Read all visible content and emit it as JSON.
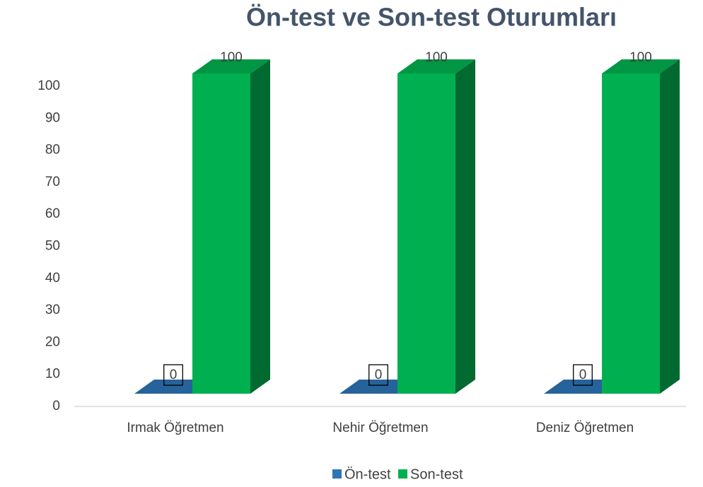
{
  "chart_data": {
    "type": "bar3d",
    "title": "Ön-test ve Son-test Oturumları",
    "categories": [
      "Irmak Öğretmen",
      "Nehir Öğretmen",
      "Deniz Öğretmen"
    ],
    "series": [
      {
        "name": "Ön-test",
        "color": "#2e75b6",
        "values": [
          0,
          0,
          0
        ]
      },
      {
        "name": "Son-test",
        "color": "#00b050",
        "values": [
          100,
          100,
          100
        ]
      }
    ],
    "ylim": [
      0,
      100
    ],
    "yticks": [
      0,
      10,
      20,
      30,
      40,
      50,
      60,
      70,
      80,
      90,
      100
    ],
    "grid": false
  }
}
